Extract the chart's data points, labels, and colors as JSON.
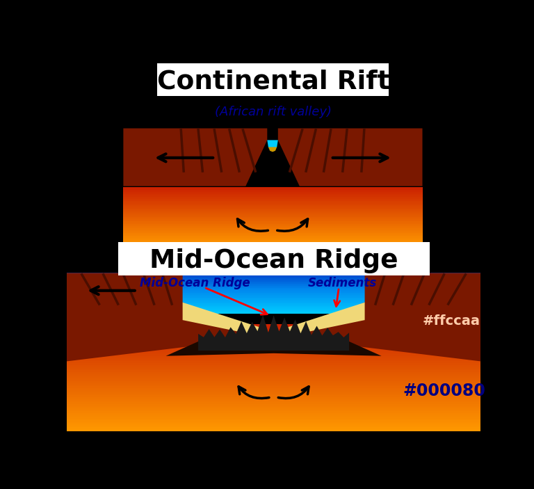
{
  "title1": "Continental Rift",
  "title2": "Mid-Ocean Ridge",
  "subtitle1": "(African rift valley)",
  "label_mid_ocean": "Mid-Ocean Ridge",
  "label_sediments": "Sediments",
  "label_crust": "#ffccaa",
  "label_mantle": "#000080",
  "bg_color": "#000000",
  "mantle_red": "#cc2200",
  "mantle_orange": "#ff9900",
  "crust_color": "#7a1800",
  "crust_dark": "#4a0e00",
  "ocean_bright": "#00ccff",
  "ocean_mid": "#0088ee",
  "ocean_dark": "#0044cc",
  "sediment_color": "#f0d878",
  "ridge_dark": "#1a1a1a",
  "title_bg": "#ffffff",
  "subtitle_color": "#000099",
  "label_blue": "#000099"
}
